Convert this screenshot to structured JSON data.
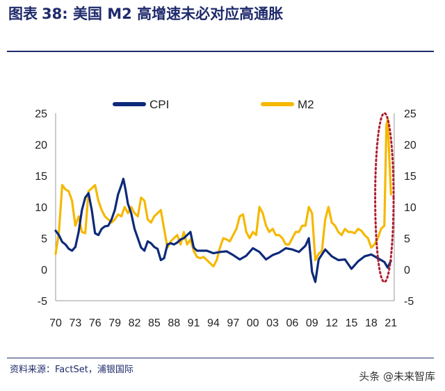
{
  "header": {
    "label": "图表",
    "number": "38:",
    "text": "美国 M2 高增速未必对应高通胀"
  },
  "source": "资料来源：FactSet，浦银国际",
  "watermark": "头条 @未来智库",
  "chart_data": {
    "type": "line",
    "title": "",
    "legend": {
      "placement": "top-center",
      "entries": [
        "CPI",
        "M2"
      ]
    },
    "x_ticks": [
      "70",
      "73",
      "76",
      "79",
      "82",
      "85",
      "88",
      "91",
      "94",
      "97",
      "00",
      "03",
      "06",
      "09",
      "12",
      "15",
      "18",
      "21"
    ],
    "xlim": [
      1970,
      2021.5
    ],
    "y_left": {
      "ticks": [
        "25",
        "20",
        "15",
        "10",
        "5",
        "0",
        "-5"
      ],
      "lim": [
        -5,
        25
      ]
    },
    "y_right": {
      "ticks": [
        "25",
        "20",
        "15",
        "10",
        "5",
        "0",
        "-5"
      ],
      "lim": [
        -5,
        25
      ]
    },
    "grid": false,
    "highlight": {
      "shape": "dotted-ellipse",
      "color": "#b01c2e",
      "x_range": [
        2018.6,
        2021.4
      ],
      "y_range": [
        -2,
        25
      ]
    },
    "series": [
      {
        "name": "CPI",
        "color": "#0d2a7a",
        "x": [
          1970,
          1970.5,
          1971,
          1971.5,
          1972,
          1972.5,
          1973,
          1973.5,
          1974,
          1974.5,
          1975,
          1975.5,
          1976,
          1976.5,
          1977,
          1977.5,
          1978,
          1978.5,
          1979,
          1979.5,
          1980,
          1980.3,
          1980.6,
          1981,
          1981.5,
          1982,
          1982.5,
          1983,
          1983.5,
          1984,
          1984.5,
          1985,
          1985.5,
          1986,
          1986.5,
          1987,
          1987.5,
          1988,
          1988.5,
          1989,
          1989.5,
          1990,
          1990.5,
          1991,
          1991.5,
          1992,
          1993,
          1994,
          1995,
          1996,
          1997,
          1998,
          1999,
          2000,
          2001,
          2002,
          2003,
          2004,
          2005,
          2006,
          2007,
          2008,
          2008.5,
          2009,
          2009.5,
          2010,
          2011,
          2012,
          2013,
          2014,
          2015,
          2016,
          2017,
          2018,
          2019,
          2020,
          2020.5,
          2021
        ],
        "y": [
          6.2,
          5.5,
          4.4,
          4.0,
          3.3,
          3.0,
          3.6,
          6.0,
          9.5,
          11.5,
          12.2,
          9.5,
          5.8,
          5.5,
          6.5,
          6.9,
          7.0,
          8.0,
          9.5,
          12.0,
          13.5,
          14.5,
          13.0,
          10.5,
          9.0,
          6.5,
          5.0,
          3.5,
          3.0,
          4.5,
          4.2,
          3.6,
          3.3,
          1.5,
          1.8,
          4.0,
          4.2,
          4.0,
          4.3,
          4.8,
          5.0,
          5.5,
          6.0,
          3.5,
          3.0,
          3.0,
          3.0,
          2.6,
          2.8,
          2.9,
          2.3,
          1.6,
          2.2,
          3.4,
          2.8,
          1.6,
          2.3,
          2.7,
          3.4,
          3.2,
          2.8,
          3.8,
          5.0,
          -0.4,
          -2.0,
          1.6,
          3.2,
          2.1,
          1.5,
          1.6,
          0.1,
          1.3,
          2.1,
          2.4,
          1.8,
          1.2,
          0.3,
          1.4
        ]
      },
      {
        "name": "M2",
        "color": "#f5b800",
        "x": [
          1970,
          1970.5,
          1971,
          1971.5,
          1972,
          1972.5,
          1973,
          1973.5,
          1974,
          1974.5,
          1975,
          1975.5,
          1976,
          1976.5,
          1977,
          1977.5,
          1978,
          1978.5,
          1979,
          1979.5,
          1980,
          1980.5,
          1981,
          1981.5,
          1982,
          1982.5,
          1983,
          1983.5,
          1984,
          1984.5,
          1985,
          1985.5,
          1986,
          1986.5,
          1987,
          1987.5,
          1988,
          1988.5,
          1989,
          1989.5,
          1990,
          1990.5,
          1991,
          1991.5,
          1992,
          1992.5,
          1993,
          1993.5,
          1994,
          1994.5,
          1995,
          1995.5,
          1996,
          1996.5,
          1997,
          1997.5,
          1998,
          1998.5,
          1999,
          1999.5,
          2000,
          2000.5,
          2001,
          2001.5,
          2002,
          2002.5,
          2003,
          2003.5,
          2004,
          2004.5,
          2005,
          2005.5,
          2006,
          2006.5,
          2007,
          2007.5,
          2008,
          2008.5,
          2009,
          2009.5,
          2010,
          2010.5,
          2011,
          2011.5,
          2012,
          2012.5,
          2013,
          2013.5,
          2014,
          2014.5,
          2015,
          2015.5,
          2016,
          2016.5,
          2017,
          2017.5,
          2018,
          2018.5,
          2019,
          2019.5,
          2020,
          2020.3,
          2020.5,
          2021
        ],
        "y": [
          2.5,
          6.0,
          13.5,
          12.8,
          12.5,
          11.0,
          7.0,
          8.5,
          6.0,
          5.8,
          12.5,
          13.0,
          13.5,
          11.0,
          9.5,
          8.5,
          8.0,
          7.5,
          8.0,
          8.8,
          8.5,
          10.0,
          9.0,
          10.0,
          9.0,
          8.5,
          11.5,
          11.0,
          8.0,
          7.5,
          8.5,
          9.0,
          9.5,
          6.5,
          3.5,
          4.5,
          5.0,
          5.5,
          4.0,
          6.0,
          4.0,
          4.8,
          3.0,
          2.0,
          1.8,
          2.0,
          1.5,
          1.0,
          0.5,
          1.5,
          3.5,
          5.0,
          4.8,
          4.5,
          5.5,
          6.5,
          8.5,
          8.8,
          6.0,
          5.0,
          6.0,
          5.5,
          10.0,
          9.0,
          7.0,
          6.0,
          6.5,
          5.5,
          5.5,
          5.0,
          4.0,
          4.0,
          5.0,
          6.0,
          6.0,
          7.0,
          7.0,
          10.0,
          9.0,
          1.5,
          2.5,
          3.0,
          8.0,
          10.0,
          7.5,
          7.0,
          6.0,
          5.5,
          6.5,
          6.0,
          6.0,
          5.8,
          6.5,
          6.2,
          5.5,
          5.0,
          3.5,
          4.0,
          5.0,
          6.5,
          7.0,
          23.0,
          24.0,
          12.0
        ]
      }
    ]
  }
}
